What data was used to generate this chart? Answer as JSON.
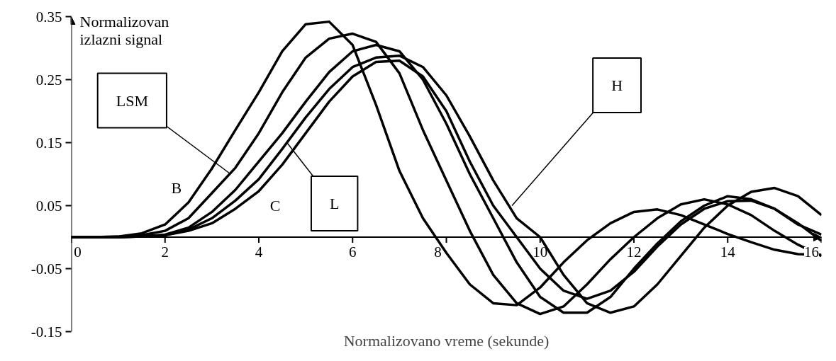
{
  "chart_data": {
    "type": "line",
    "xlabel": "Normalizovano vreme (sekunde)",
    "ylabel": "Normalizovan izlazni signal",
    "xlim": [
      0,
      16
    ],
    "ylim": [
      -0.15,
      0.35
    ],
    "xticks": [
      0,
      2,
      4,
      6,
      8,
      10,
      12,
      14,
      16
    ],
    "yticks": [
      -0.15,
      -0.05,
      0.05,
      0.15,
      0.25,
      0.35
    ],
    "grid": false,
    "marker": "none",
    "line_style": "solid",
    "x": [
      0,
      0.5,
      1,
      1.5,
      2,
      2.5,
      3,
      3.5,
      4,
      4.5,
      5,
      5.5,
      6,
      6.5,
      7,
      7.5,
      8,
      8.5,
      9,
      9.5,
      10,
      10.5,
      11,
      11.5,
      12,
      12.5,
      13,
      13.5,
      14,
      14.5,
      15,
      15.5,
      16
    ],
    "series": [
      {
        "color": "#000000",
        "values": [
          0,
          0,
          0.001,
          0.006,
          0.02,
          0.055,
          0.109,
          0.17,
          0.23,
          0.295,
          0.338,
          0.342,
          0.305,
          0.21,
          0.105,
          0.03,
          -0.025,
          -0.075,
          -0.105,
          -0.108,
          -0.08,
          -0.04,
          -0.005,
          0.022,
          0.04,
          0.044,
          0.035,
          0.02,
          0.005,
          -0.008,
          -0.02,
          -0.027,
          -0.028
        ]
      },
      {
        "color": "#000000",
        "values": [
          0,
          0,
          0,
          0.003,
          0.01,
          0.03,
          0.07,
          0.11,
          0.165,
          0.23,
          0.285,
          0.315,
          0.323,
          0.31,
          0.26,
          0.17,
          0.09,
          0.01,
          -0.06,
          -0.105,
          -0.122,
          -0.11,
          -0.075,
          -0.035,
          0,
          0.03,
          0.052,
          0.06,
          0.052,
          0.035,
          0.01,
          -0.012,
          -0.03
        ]
      },
      {
        "color": "#000000",
        "values": [
          0,
          0,
          0,
          0.001,
          0.004,
          0.015,
          0.04,
          0.075,
          0.12,
          0.165,
          0.215,
          0.262,
          0.295,
          0.305,
          0.295,
          0.25,
          0.18,
          0.1,
          0.03,
          -0.04,
          -0.095,
          -0.12,
          -0.12,
          -0.095,
          -0.05,
          -0.01,
          0.025,
          0.05,
          0.065,
          0.06,
          0.045,
          0.02,
          0.004
        ]
      },
      {
        "color": "#000000",
        "values": [
          0,
          0,
          0,
          0.001,
          0.003,
          0.012,
          0.03,
          0.058,
          0.092,
          0.14,
          0.19,
          0.235,
          0.27,
          0.285,
          0.288,
          0.27,
          0.225,
          0.16,
          0.09,
          0.03,
          0,
          -0.06,
          -0.105,
          -0.12,
          -0.11,
          -0.075,
          -0.03,
          0.015,
          0.05,
          0.072,
          0.078,
          0.065,
          0.035
        ]
      },
      {
        "color": "#000000",
        "values": [
          0,
          0,
          0,
          0.001,
          0.003,
          0.01,
          0.022,
          0.045,
          0.073,
          0.115,
          0.165,
          0.215,
          0.255,
          0.278,
          0.28,
          0.255,
          0.2,
          0.12,
          0.05,
          0,
          -0.05,
          -0.085,
          -0.098,
          -0.085,
          -0.055,
          -0.015,
          0.02,
          0.045,
          0.057,
          0.058,
          0.045,
          0.022,
          -0.006
        ]
      }
    ],
    "annotations": [
      {
        "text": "B",
        "x": 2.5,
        "y": 0.055
      },
      {
        "text": "LSM",
        "x": 3.4,
        "y": 0.1
      },
      {
        "text": "C",
        "x": 4.35,
        "y": 0.1
      },
      {
        "text": "L",
        "x": 4.6,
        "y": 0.15
      },
      {
        "text": "H",
        "x": 9.4,
        "y": 0.05
      }
    ]
  }
}
